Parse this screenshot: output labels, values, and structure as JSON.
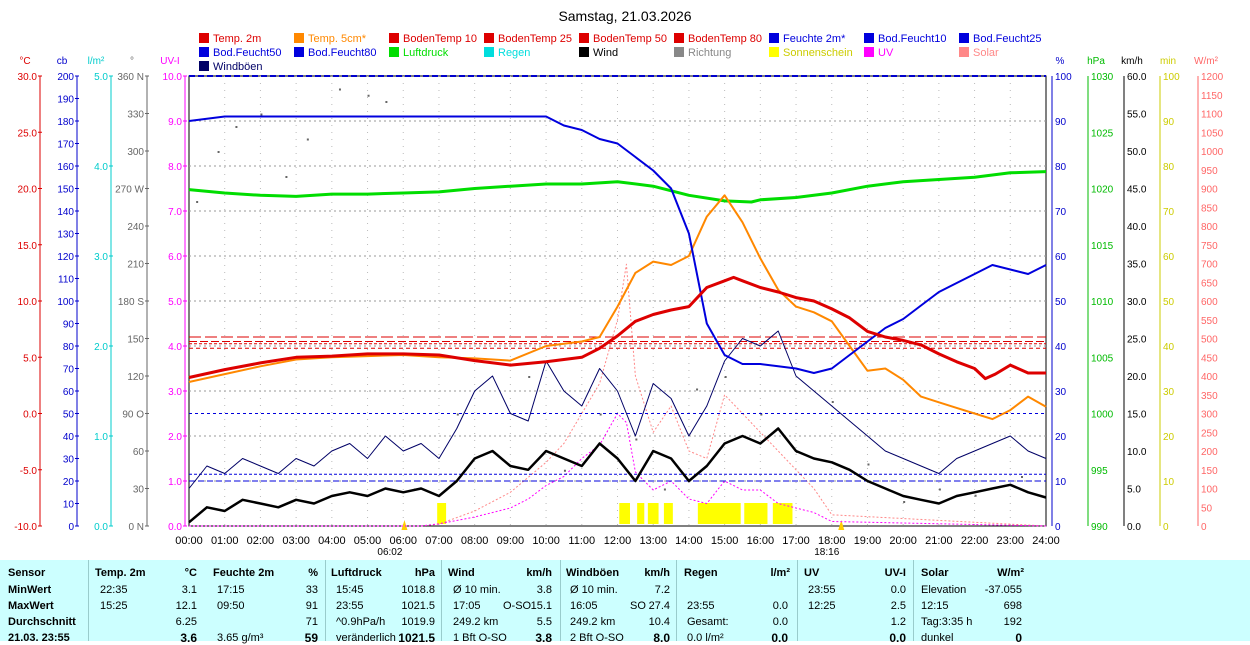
{
  "title": "Samstag, 21.03.2026",
  "legend": [
    {
      "label": "Temp. 2m",
      "color": "#dd0000"
    },
    {
      "label": "Temp. 5cm*",
      "color": "#ff8800"
    },
    {
      "label": "BodenTemp 10",
      "color": "#dd0000"
    },
    {
      "label": "BodenTemp 25",
      "color": "#dd0000"
    },
    {
      "label": "BodenTemp 50",
      "color": "#dd0000"
    },
    {
      "label": "BodenTemp 80",
      "color": "#dd0000"
    },
    {
      "label": "Feuchte 2m*",
      "color": "#0000dd"
    },
    {
      "label": "Bod.Feucht10",
      "color": "#0000dd"
    },
    {
      "label": "Bod.Feucht25",
      "color": "#0000dd"
    },
    {
      "label": "Bod.Feucht50",
      "color": "#0000dd"
    },
    {
      "label": "Bod.Feucht80",
      "color": "#0000dd"
    },
    {
      "label": "Luftdruck",
      "color": "#00dd00"
    },
    {
      "label": "Regen",
      "color": "#00dddd"
    },
    {
      "label": "Wind",
      "color": "#000000"
    },
    {
      "label": "Richtung",
      "color": "#888888"
    },
    {
      "label": "Sonnenschein",
      "color": "#ffff00"
    },
    {
      "label": "UV",
      "color": "#ff00ff"
    },
    {
      "label": "Solar",
      "color": "#ff8888"
    },
    {
      "label": "Windböen",
      "color": "#000066"
    }
  ],
  "axes_left": [
    {
      "unit": "°C",
      "color": "#dd0000",
      "ticks": [
        "30.0",
        "25.0",
        "20.0",
        "15.0",
        "10.0",
        "5.0",
        "0.0",
        "-5.0",
        "-10.0"
      ]
    },
    {
      "unit": "cb",
      "color": "#0000cc",
      "ticks": [
        "200",
        "190",
        "180",
        "170",
        "160",
        "150",
        "140",
        "130",
        "120",
        "110",
        "100",
        "90",
        "80",
        "70",
        "60",
        "50",
        "40",
        "30",
        "20",
        "10",
        "0"
      ]
    },
    {
      "unit": "l/m²",
      "color": "#00cccc",
      "ticks": [
        "5.0",
        "4.0",
        "3.0",
        "2.0",
        "1.0",
        "0.0"
      ]
    },
    {
      "unit": "°",
      "color": "#666666",
      "ticks": [
        "360 N",
        "330",
        "300",
        "270 W",
        "240",
        "210",
        "180 S",
        "150",
        "120",
        "90 O",
        "60",
        "30",
        "0 N"
      ]
    },
    {
      "unit": "UV-I",
      "color": "#ff00ff",
      "ticks": [
        "10.0",
        "9.0",
        "8.0",
        "7.0",
        "6.0",
        "5.0",
        "4.0",
        "3.0",
        "2.0",
        "1.0",
        "0.0"
      ]
    }
  ],
  "axes_right": [
    {
      "unit": "%",
      "color": "#0000cc",
      "ticks": [
        "100",
        "90",
        "80",
        "70",
        "60",
        "50",
        "40",
        "30",
        "20",
        "10",
        "0"
      ]
    },
    {
      "unit": "hPa",
      "color": "#00bb00",
      "ticks": [
        "1030",
        "1025",
        "1020",
        "1015",
        "1010",
        "1005",
        "1000",
        "995",
        "990"
      ]
    },
    {
      "unit": "km/h",
      "color": "#000000",
      "ticks": [
        "60.0",
        "55.0",
        "50.0",
        "45.0",
        "40.0",
        "35.0",
        "30.0",
        "25.0",
        "20.0",
        "15.0",
        "10.0",
        "5.0",
        "0.0"
      ]
    },
    {
      "unit": "min",
      "color": "#dddd00",
      "ticks": [
        "100",
        "90",
        "80",
        "70",
        "60",
        "50",
        "40",
        "30",
        "20",
        "10",
        "0"
      ]
    },
    {
      "unit": "W/m²",
      "color": "#ff6666",
      "ticks": [
        "1200",
        "1150",
        "1100",
        "1050",
        "1000",
        "950",
        "900",
        "850",
        "800",
        "750",
        "700",
        "650",
        "600",
        "550",
        "500",
        "450",
        "400",
        "350",
        "300",
        "250",
        "200",
        "150",
        "100",
        "50",
        "0"
      ]
    }
  ],
  "time_labels": [
    "00:00",
    "01:00",
    "02:00",
    "03:00",
    "04:00",
    "05:00",
    "06:00",
    "07:00",
    "08:00",
    "09:00",
    "10:00",
    "11:00",
    "12:00",
    "13:00",
    "14:00",
    "15:00",
    "16:00",
    "17:00",
    "18:00",
    "19:00",
    "20:00",
    "21:00",
    "22:00",
    "23:00",
    "24:00"
  ],
  "sunrise": "06:02",
  "sunset": "18:16",
  "chart_data": {
    "type": "line",
    "title": "Samstag, 21.03.2026",
    "x_unit": "hours",
    "xlim": [
      0,
      24
    ],
    "series": [
      {
        "name": "Temp. 2m",
        "unit": "°C",
        "color": "#dd0000",
        "x": [
          0,
          1,
          2,
          3,
          4,
          5,
          6,
          7,
          8,
          9,
          10,
          11,
          11.5,
          12,
          12.5,
          13,
          13.5,
          14,
          14.5,
          15,
          15.25,
          15.5,
          16,
          16.5,
          17,
          17.5,
          18,
          18.5,
          19,
          19.5,
          20,
          20.5,
          21,
          21.5,
          22,
          22.3,
          22.58,
          23,
          23.5,
          24
        ],
        "y": [
          3.2,
          3.9,
          4.5,
          5.0,
          5.1,
          5.3,
          5.3,
          5.2,
          4.7,
          4.3,
          4.6,
          5.0,
          5.8,
          6.9,
          8.2,
          8.8,
          9.2,
          9.5,
          11.2,
          11.8,
          12.1,
          11.8,
          11.2,
          10.8,
          10.3,
          10.0,
          9.3,
          8.5,
          7.3,
          6.8,
          6.5,
          6.1,
          5.3,
          4.6,
          4.0,
          3.1,
          3.5,
          4.3,
          3.6,
          3.6
        ]
      },
      {
        "name": "Temp. 5cm*",
        "unit": "°C",
        "color": "#ff8800",
        "x": [
          0,
          1,
          2,
          3,
          4,
          5,
          6,
          7,
          8,
          9,
          10,
          11,
          11.5,
          12,
          12.5,
          13,
          13.5,
          14,
          14.5,
          15,
          15.5,
          16,
          16.5,
          17,
          17.5,
          18,
          18.5,
          19,
          19.5,
          20,
          20.5,
          21,
          21.5,
          22,
          22.5,
          23,
          23.5,
          24
        ],
        "y": [
          2.8,
          3.5,
          4.2,
          4.8,
          5.0,
          5.1,
          5.2,
          5.0,
          4.9,
          4.7,
          6.0,
          6.4,
          6.8,
          9.5,
          12.5,
          13.5,
          13.2,
          14.0,
          17.5,
          19.4,
          17.0,
          13.8,
          11.0,
          9.5,
          9.0,
          8.2,
          6.0,
          3.8,
          4.0,
          3.0,
          1.5,
          1.0,
          0.5,
          0.0,
          -0.5,
          0.3,
          1.5,
          0.6
        ]
      },
      {
        "name": "Feuchte 2m*",
        "unit": "%",
        "color": "#0000dd",
        "x": [
          0,
          1,
          2,
          3,
          4,
          5,
          6,
          7,
          8,
          9,
          9.5,
          10,
          10.5,
          11,
          11.5,
          12,
          12.5,
          13,
          13.5,
          14,
          14.5,
          15,
          15.5,
          16,
          16.5,
          17,
          17.5,
          18,
          18.5,
          19,
          19.5,
          20,
          20.5,
          21,
          21.5,
          22,
          22.5,
          23,
          23.5,
          24
        ],
        "y": [
          90,
          91,
          91,
          91,
          91,
          91,
          91,
          91,
          91,
          91,
          91,
          91,
          89,
          88,
          86,
          85,
          82,
          79,
          75,
          65,
          45,
          38,
          36,
          36,
          35.5,
          35,
          34,
          35,
          38,
          41,
          44,
          46,
          49,
          52,
          54,
          56,
          58,
          57,
          56,
          58
        ]
      },
      {
        "name": "Luftdruck",
        "unit": "hPa",
        "color": "#00dd00",
        "x": [
          0,
          1,
          2,
          3,
          4,
          5,
          6,
          7,
          8,
          9,
          10,
          11,
          12,
          13,
          14,
          15,
          15.75,
          16,
          17,
          18,
          19,
          20,
          21,
          22,
          23,
          24
        ],
        "y": [
          1019.9,
          1019.6,
          1019.4,
          1019.3,
          1019.5,
          1019.5,
          1019.6,
          1019.7,
          1020.0,
          1020.2,
          1020.4,
          1020.4,
          1020.6,
          1020.2,
          1019.4,
          1018.9,
          1018.8,
          1019.0,
          1019.2,
          1019.6,
          1020.2,
          1020.6,
          1020.8,
          1021.0,
          1021.4,
          1021.5
        ]
      },
      {
        "name": "Wind",
        "unit": "km/h",
        "color": "#000000",
        "x": [
          0,
          0.5,
          1,
          1.5,
          2,
          2.5,
          3,
          3.5,
          4,
          4.5,
          5,
          5.5,
          6,
          6.5,
          7,
          7.5,
          8,
          8.5,
          9,
          9.5,
          10,
          10.5,
          11,
          11.5,
          12,
          12.5,
          13,
          13.5,
          14,
          14.5,
          15,
          15.5,
          16,
          16.5,
          17,
          17.5,
          18,
          18.5,
          19,
          19.5,
          20,
          20.5,
          21,
          21.5,
          22,
          22.5,
          23,
          23.5,
          24
        ],
        "y": [
          0.5,
          2.5,
          2,
          3.5,
          3,
          2.5,
          3.5,
          3,
          4,
          4.5,
          4,
          5,
          4.5,
          5,
          4,
          6,
          9,
          10,
          8,
          7.5,
          10,
          9,
          8,
          11,
          9,
          6,
          10,
          9,
          6,
          8,
          11,
          12,
          11,
          13,
          10,
          9,
          8.5,
          7.5,
          6,
          5,
          4,
          3.5,
          3,
          4,
          4.5,
          5,
          5.5,
          4.5,
          3.8
        ]
      },
      {
        "name": "Windböen",
        "unit": "km/h",
        "color": "#000066",
        "x": [
          0,
          0.5,
          1,
          1.5,
          2,
          2.5,
          3,
          3.5,
          4,
          4.5,
          5,
          5.5,
          6,
          6.5,
          7,
          7.5,
          8,
          8.5,
          9,
          9.5,
          10,
          10.5,
          11,
          11.5,
          12,
          12.5,
          13,
          13.5,
          14,
          14.5,
          15,
          15.5,
          16,
          16.5,
          17,
          17.5,
          18,
          18.5,
          19,
          19.5,
          20,
          20.5,
          21,
          21.5,
          22,
          22.5,
          23,
          23.5,
          24
        ],
        "y": [
          5,
          8,
          7,
          9,
          8,
          7,
          9,
          8,
          10,
          11,
          9,
          12,
          10,
          11,
          9,
          13,
          18,
          20,
          15,
          14,
          22,
          18,
          16,
          21,
          18,
          12,
          19,
          17,
          12,
          16,
          22,
          25,
          24,
          26,
          20,
          18,
          16,
          14,
          12,
          10,
          9,
          8,
          7,
          9,
          10,
          11,
          12,
          10,
          9
        ]
      },
      {
        "name": "UV",
        "unit": "UV-I",
        "color": "#ff00ff",
        "x": [
          0,
          6.5,
          7,
          8,
          9,
          9.5,
          10,
          10.5,
          11,
          11.5,
          12,
          12.25,
          12.5,
          13,
          13.5,
          14,
          14.5,
          15,
          15.5,
          16,
          16.5,
          17,
          17.5,
          18,
          24
        ],
        "y": [
          0,
          0,
          0.05,
          0.2,
          0.4,
          0.6,
          0.9,
          1.1,
          1.5,
          1.8,
          2.5,
          2.3,
          1.2,
          0.8,
          1.0,
          0.6,
          0.5,
          1.0,
          0.8,
          0.8,
          0.5,
          0.4,
          0.3,
          0.1,
          0
        ]
      },
      {
        "name": "Solar",
        "unit": "W/m²",
        "color": "#ff8888",
        "x": [
          0,
          6.5,
          7,
          8,
          9,
          10,
          10.5,
          11,
          11.5,
          12,
          12.25,
          12.5,
          13,
          13.5,
          14,
          14.5,
          15,
          15.5,
          16,
          16.5,
          17,
          17.5,
          18,
          24
        ],
        "y": [
          0,
          0,
          5,
          40,
          90,
          170,
          220,
          300,
          380,
          550,
          698,
          400,
          250,
          320,
          200,
          180,
          350,
          300,
          250,
          200,
          150,
          100,
          30,
          0
        ]
      },
      {
        "name": "BodenTemp 10",
        "unit": "°C",
        "color": "#dd0000",
        "x": [
          0,
          24
        ],
        "y": [
          6.8,
          6.8
        ]
      },
      {
        "name": "BodenTemp 25",
        "unit": "°C",
        "color": "#dd0000",
        "x": [
          0,
          24
        ],
        "y": [
          6.4,
          6.4
        ]
      },
      {
        "name": "BodenTemp 50",
        "unit": "°C",
        "color": "#dd0000",
        "x": [
          0,
          24
        ],
        "y": [
          5.8,
          5.8
        ]
      },
      {
        "name": "BodenTemp 80",
        "unit": "°C",
        "color": "#dd0000",
        "x": [
          0,
          24
        ],
        "y": [
          6.2,
          6.2
        ]
      },
      {
        "name": "Bod.Feucht10",
        "unit": "cb",
        "color": "#0000dd",
        "x": [
          0,
          24
        ],
        "y": [
          50,
          50
        ]
      },
      {
        "name": "Bod.Feucht25",
        "unit": "cb",
        "color": "#0000dd",
        "x": [
          0,
          24
        ],
        "y": [
          20,
          20
        ]
      },
      {
        "name": "Bod.Feucht50",
        "unit": "cb",
        "color": "#0000dd",
        "x": [
          0,
          24
        ],
        "y": [
          23,
          23
        ]
      }
    ],
    "sunshine_blocks": [
      [
        6.95,
        7.2
      ],
      [
        12.05,
        12.35
      ],
      [
        12.55,
        12.75
      ],
      [
        12.85,
        13.15
      ],
      [
        13.3,
        13.55
      ],
      [
        14.25,
        15.45
      ],
      [
        15.55,
        16.2
      ],
      [
        16.35,
        16.9
      ]
    ],
    "wind_direction_samples": {
      "unit": "°",
      "x": [
        0.2,
        0.8,
        1.3,
        2,
        2.7,
        3.3,
        4.2,
        5,
        5.5,
        6.3,
        7.5,
        8.5,
        9.5,
        10.5,
        11.5,
        12.5,
        13.3,
        14.2,
        15,
        16,
        17,
        18,
        19,
        20,
        21,
        22,
        23.3
      ],
      "y": [
        260,
        300,
        320,
        330,
        280,
        310,
        350,
        345,
        340,
        30,
        90,
        60,
        120,
        45,
        90,
        70,
        30,
        110,
        120,
        90,
        60,
        100,
        50,
        20,
        30,
        25,
        40
      ]
    }
  },
  "stats": {
    "headers": {
      "sensor": "Sensor",
      "temp": "Temp. 2m",
      "temp_u": "°C",
      "hum": "Feuchte 2m",
      "hum_u": "%",
      "press": "Luftdruck",
      "press_u": "hPa",
      "wind": "Wind",
      "wind_u": "km/h",
      "gust": "Windböen",
      "gust_u": "km/h",
      "rain": "Regen",
      "rain_u": "l/m²",
      "uv": "UV",
      "uv_u": "UV-I",
      "solar": "Solar",
      "solar_u": "W/m²"
    },
    "rows": [
      {
        "label": "MinWert",
        "temp_t": "22:35",
        "temp_v": "3.1",
        "hum_t": "17:15",
        "hum_v": "33",
        "press_t": "15:45",
        "press_v": "1018.8",
        "wind_t": "Ø 10 min.",
        "wind_d": "",
        "wind_v": "3.8",
        "gust_t": "Ø 10 min.",
        "gust_d": "",
        "gust_v": "7.2",
        "rain_t": "",
        "rain_v": "",
        "uv_t": "23:55",
        "uv_v": "0.0",
        "solar_t": "Elevation",
        "solar_v": "-37.055"
      },
      {
        "label": "MaxWert",
        "temp_t": "15:25",
        "temp_v": "12.1",
        "hum_t": "09:50",
        "hum_v": "91",
        "press_t": "23:55",
        "press_v": "1021.5",
        "wind_t": "17:05",
        "wind_d": "O-SO",
        "wind_v": "15.1",
        "gust_t": "16:05",
        "gust_d": "SO",
        "gust_v": "27.4",
        "rain_t": "23:55",
        "rain_v": "0.0",
        "uv_t": "12:25",
        "uv_v": "2.5",
        "solar_t": "12:15",
        "solar_v": "698"
      },
      {
        "label": "Durchschnitt",
        "temp_t": "",
        "temp_v": "6.25",
        "hum_t": "",
        "hum_v": "71",
        "press_t": "^0.9hPa/h",
        "press_v": "1019.9",
        "wind_t": "249.2 km",
        "wind_d": "",
        "wind_v": "5.5",
        "gust_t": "249.2 km",
        "gust_d": "",
        "gust_v": "10.4",
        "rain_t": "Gesamt:",
        "rain_v": "0.0",
        "uv_t": "",
        "uv_v": "1.2",
        "solar_t": "Tag:3:35 h",
        "solar_v": "192"
      },
      {
        "label": "21.03. 23:55",
        "temp_t": "",
        "temp_v": "3.6",
        "hum_t": "3.65 g/m³",
        "hum_v": "59",
        "press_t": "veränderlich",
        "press_v": "1021.5",
        "wind_t": "1 Bft O-SO",
        "wind_d": "",
        "wind_v": "3.8",
        "gust_t": "2 Bft O-SO",
        "gust_d": "",
        "gust_v": "8.0",
        "rain_t": "0.0 l/m²",
        "rain_v": "0.0",
        "uv_t": "",
        "uv_v": "0.0",
        "solar_t": "dunkel",
        "solar_v": "0"
      }
    ]
  }
}
